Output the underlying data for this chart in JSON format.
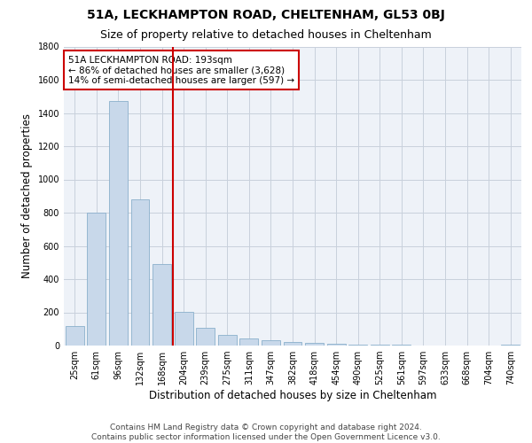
{
  "title": "51A, LECKHAMPTON ROAD, CHELTENHAM, GL53 0BJ",
  "subtitle": "Size of property relative to detached houses in Cheltenham",
  "xlabel": "Distribution of detached houses by size in Cheltenham",
  "ylabel": "Number of detached properties",
  "categories": [
    "25sqm",
    "61sqm",
    "96sqm",
    "132sqm",
    "168sqm",
    "204sqm",
    "239sqm",
    "275sqm",
    "311sqm",
    "347sqm",
    "382sqm",
    "418sqm",
    "454sqm",
    "490sqm",
    "525sqm",
    "561sqm",
    "597sqm",
    "633sqm",
    "668sqm",
    "704sqm",
    "740sqm"
  ],
  "values": [
    120,
    800,
    1470,
    880,
    490,
    205,
    105,
    65,
    42,
    32,
    22,
    15,
    10,
    7,
    4,
    3,
    2,
    2,
    1,
    1,
    8
  ],
  "bar_color": "#c8d8ea",
  "bar_edge_color": "#8ab0cc",
  "vline_color": "#cc0000",
  "annotation_text": "51A LECKHAMPTON ROAD: 193sqm\n← 86% of detached houses are smaller (3,628)\n14% of semi-detached houses are larger (597) →",
  "annotation_box_color": "white",
  "annotation_box_edge_color": "#cc0000",
  "ylim": [
    0,
    1800
  ],
  "yticks": [
    0,
    200,
    400,
    600,
    800,
    1000,
    1200,
    1400,
    1600,
    1800
  ],
  "footer": "Contains HM Land Registry data © Crown copyright and database right 2024.\nContains public sector information licensed under the Open Government Licence v3.0.",
  "bg_color": "#ffffff",
  "plot_bg_color": "#eef2f8",
  "grid_color": "#c8d0dc",
  "title_fontsize": 10,
  "subtitle_fontsize": 9,
  "axis_label_fontsize": 8.5,
  "tick_fontsize": 7,
  "footer_fontsize": 6.5
}
